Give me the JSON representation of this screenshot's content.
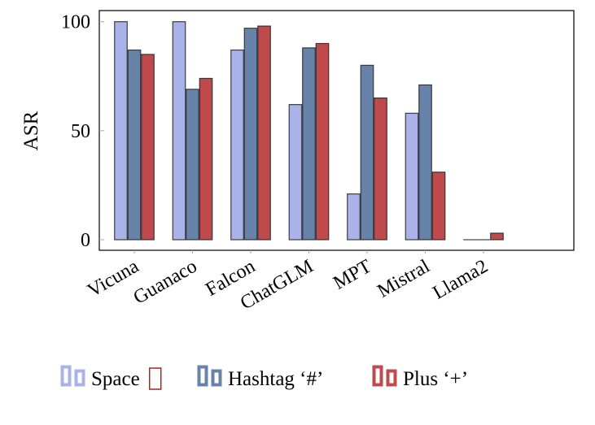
{
  "chart_data": {
    "type": "bar",
    "title": "",
    "xlabel": "",
    "ylabel": "ASR",
    "ylim": [
      -5,
      105
    ],
    "yticks": [
      0,
      50,
      100
    ],
    "grid": false,
    "legend_position": "bottom",
    "categories": [
      "Vicuna",
      "Guanaco",
      "Falcon",
      "ChatGLM",
      "MPT",
      "Mistral",
      "Llama2"
    ],
    "series": [
      {
        "name": "Space",
        "color": "#aab2ea",
        "values": [
          100,
          100,
          87,
          62,
          21,
          58,
          0
        ]
      },
      {
        "name": "Hashtag ‘#’",
        "color": "#6783aa",
        "values": [
          87,
          69,
          97,
          88,
          80,
          71,
          0
        ]
      },
      {
        "name": "Plus ‘+’",
        "color": "#be4a4c",
        "values": [
          85,
          74,
          98,
          90,
          65,
          31,
          3
        ]
      }
    ]
  }
}
